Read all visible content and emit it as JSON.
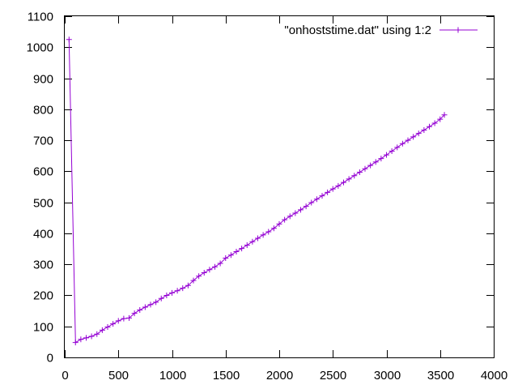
{
  "chart_data": {
    "type": "line",
    "title": "",
    "xlabel": "",
    "ylabel": "",
    "xlim": [
      0,
      4000
    ],
    "ylim": [
      0,
      1100
    ],
    "x_ticks": [
      "0",
      "500",
      "1000",
      "1500",
      "2000",
      "2500",
      "3000",
      "3500",
      "4000"
    ],
    "y_ticks": [
      "0",
      "100",
      "200",
      "300",
      "400",
      "500",
      "600",
      "700",
      "800",
      "900",
      "1000",
      "1100"
    ],
    "legend_position": "top-right",
    "grid": false,
    "marker": "plus",
    "series": [
      {
        "name": "\"onhoststime.dat\" using 1:2",
        "color": "#9400d3",
        "x": [
          40,
          100,
          150,
          200,
          250,
          300,
          350,
          400,
          450,
          500,
          550,
          600,
          650,
          700,
          750,
          800,
          850,
          900,
          950,
          1000,
          1050,
          1100,
          1150,
          1200,
          1250,
          1300,
          1350,
          1400,
          1450,
          1500,
          1550,
          1600,
          1650,
          1700,
          1750,
          1800,
          1850,
          1900,
          1950,
          2000,
          2050,
          2100,
          2150,
          2200,
          2250,
          2300,
          2350,
          2400,
          2450,
          2500,
          2550,
          2600,
          2650,
          2700,
          2750,
          2800,
          2850,
          2900,
          2950,
          3000,
          3050,
          3100,
          3150,
          3200,
          3250,
          3300,
          3350,
          3400,
          3450,
          3500,
          3540
        ],
        "y": [
          1025,
          48,
          58,
          63,
          68,
          75,
          88,
          98,
          108,
          118,
          125,
          127,
          142,
          153,
          162,
          170,
          178,
          190,
          200,
          208,
          215,
          223,
          232,
          248,
          262,
          273,
          283,
          292,
          303,
          320,
          330,
          341,
          351,
          362,
          373,
          384,
          395,
          405,
          416,
          430,
          444,
          455,
          465,
          476,
          487,
          499,
          510,
          521,
          532,
          543,
          553,
          564,
          575,
          586,
          597,
          608,
          619,
          630,
          641,
          653,
          665,
          677,
          689,
          700,
          711,
          722,
          733,
          744,
          755,
          768,
          782
        ]
      }
    ]
  }
}
